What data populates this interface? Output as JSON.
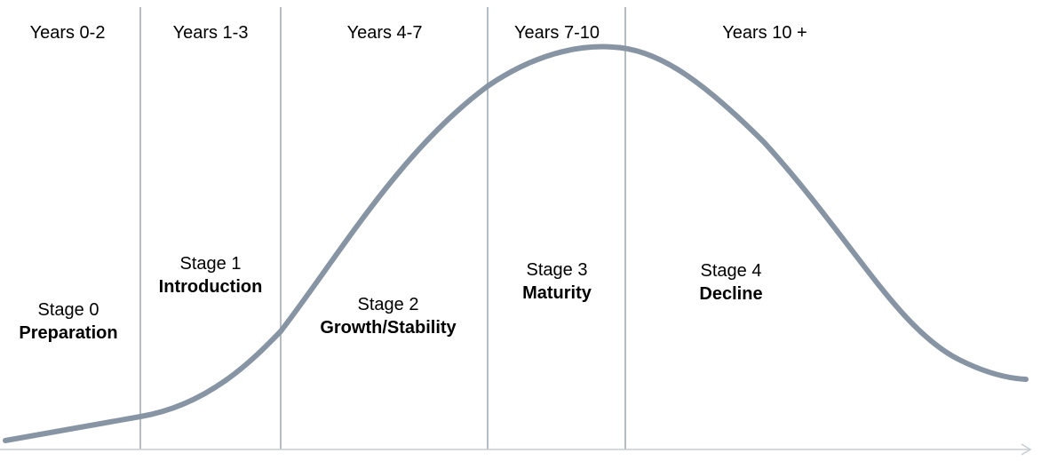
{
  "colors": {
    "curve": "#8694a3",
    "divider": "#b5bcc4",
    "axis": "#c8cdd2",
    "text": "#000000"
  },
  "periods": [
    {
      "label": "Years 0-2"
    },
    {
      "label": "Years 1-3"
    },
    {
      "label": "Years 4-7"
    },
    {
      "label": "Years 7-10"
    },
    {
      "label": "Years 10 +"
    }
  ],
  "stages": [
    {
      "number": "Stage 0",
      "name": "Preparation"
    },
    {
      "number": "Stage 1",
      "name": "Introduction"
    },
    {
      "number": "Stage 2",
      "name": "Growth/Stability"
    },
    {
      "number": "Stage 3",
      "name": "Maturity"
    },
    {
      "number": "Stage 4",
      "name": "Decline"
    }
  ]
}
